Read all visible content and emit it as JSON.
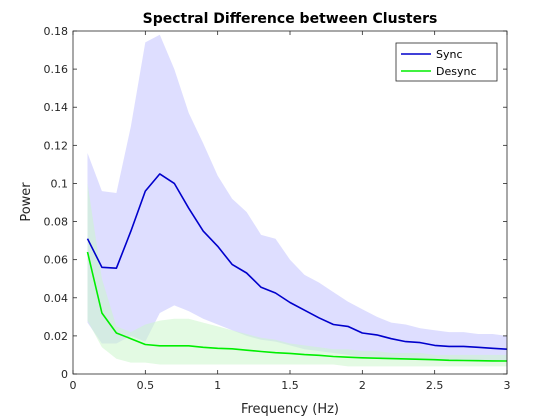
{
  "chart_data": {
    "type": "line",
    "title": "Spectral Difference between Clusters",
    "xlabel": "Frequency (Hz)",
    "ylabel": "Power",
    "xlim": [
      0,
      3
    ],
    "ylim": [
      0,
      0.18
    ],
    "x_ticks": [
      "0",
      "0.5",
      "1",
      "1.5",
      "2",
      "2.5",
      "3"
    ],
    "y_ticks": [
      "0",
      "0.02",
      "0.04",
      "0.06",
      "0.08",
      "0.1",
      "0.12",
      "0.14",
      "0.16",
      "0.18"
    ],
    "legend_position": "top-right",
    "grid": false,
    "x": [
      0.1,
      0.2,
      0.3,
      0.4,
      0.5,
      0.6,
      0.7,
      0.8,
      0.9,
      1.0,
      1.1,
      1.2,
      1.3,
      1.4,
      1.5,
      1.6,
      1.7,
      1.8,
      1.9,
      2.0,
      2.1,
      2.2,
      2.3,
      2.4,
      2.5,
      2.6,
      2.7,
      2.8,
      2.9,
      3.0
    ],
    "series": [
      {
        "name": "Sync",
        "color": "#0000cc",
        "band_color": "#ccccff",
        "values": [
          0.071,
          0.056,
          0.0555,
          0.075,
          0.096,
          0.105,
          0.1,
          0.087,
          0.075,
          0.067,
          0.0575,
          0.053,
          0.0455,
          0.0425,
          0.0375,
          0.0335,
          0.0295,
          0.026,
          0.025,
          0.0215,
          0.0205,
          0.0185,
          0.017,
          0.0165,
          0.015,
          0.0145,
          0.0145,
          0.014,
          0.0135,
          0.013
        ],
        "upper": [
          0.116,
          0.096,
          0.095,
          0.13,
          0.174,
          0.178,
          0.16,
          0.137,
          0.121,
          0.104,
          0.092,
          0.085,
          0.073,
          0.071,
          0.06,
          0.052,
          0.048,
          0.043,
          0.038,
          0.034,
          0.03,
          0.027,
          0.026,
          0.024,
          0.023,
          0.022,
          0.022,
          0.021,
          0.021,
          0.02
        ],
        "lower": [
          0.027,
          0.016,
          0.016,
          0.02,
          0.017,
          0.032,
          0.036,
          0.033,
          0.029,
          0.026,
          0.023,
          0.02,
          0.018,
          0.017,
          0.015,
          0.013,
          0.012,
          0.011,
          0.01,
          0.009,
          0.009,
          0.008,
          0.008,
          0.008,
          0.007,
          0.007,
          0.007,
          0.007,
          0.007,
          0.007
        ]
      },
      {
        "name": "Desync",
        "color": "#00ee00",
        "band_color": "#ccf5cc",
        "values": [
          0.064,
          0.032,
          0.0215,
          0.0185,
          0.0155,
          0.0148,
          0.0148,
          0.0148,
          0.014,
          0.0135,
          0.0132,
          0.0125,
          0.0118,
          0.0112,
          0.0108,
          0.0102,
          0.0098,
          0.0092,
          0.0088,
          0.0085,
          0.0083,
          0.0081,
          0.0079,
          0.0077,
          0.0075,
          0.0072,
          0.0071,
          0.007,
          0.0069,
          0.0068
        ],
        "upper": [
          0.1,
          0.05,
          0.025,
          0.022,
          0.026,
          0.028,
          0.029,
          0.029,
          0.027,
          0.025,
          0.023,
          0.021,
          0.019,
          0.018,
          0.016,
          0.015,
          0.014,
          0.013,
          0.013,
          0.012,
          0.012,
          0.011,
          0.011,
          0.011,
          0.01,
          0.01,
          0.01,
          0.01,
          0.01,
          0.01
        ],
        "lower": [
          0.028,
          0.014,
          0.008,
          0.006,
          0.006,
          0.005,
          0.005,
          0.005,
          0.005,
          0.005,
          0.005,
          0.005,
          0.005,
          0.005,
          0.005,
          0.005,
          0.005,
          0.005,
          0.004,
          0.004,
          0.004,
          0.004,
          0.004,
          0.004,
          0.004,
          0.004,
          0.004,
          0.004,
          0.004,
          0.004
        ]
      }
    ]
  }
}
